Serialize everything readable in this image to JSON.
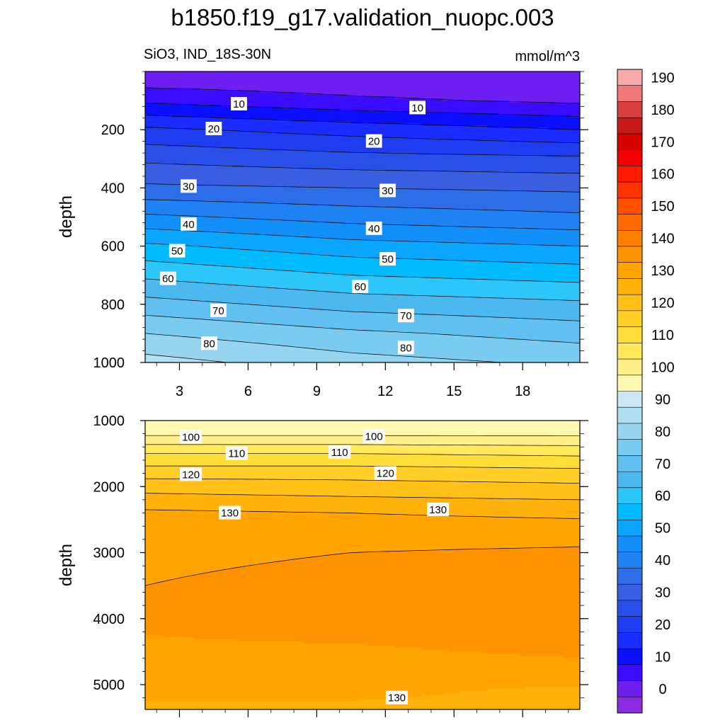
{
  "title": "b1850.f19_g17.validation_nuopc.003",
  "chart_data": {
    "type": "heatmap",
    "subtitle_left": "SiO3, IND_18S-30N",
    "subtitle_right": "mmol/m^3",
    "x_ticks": [
      3,
      6,
      9,
      12,
      15,
      18
    ],
    "xlim": [
      1.5,
      20.5
    ],
    "top_panel": {
      "ylabel": "depth",
      "ylim": [
        0,
        1000
      ],
      "y_ticks": [
        200,
        400,
        600,
        800,
        1000
      ],
      "x": [
        1.5,
        10.5,
        20.5
      ],
      "depths": [
        0,
        100,
        200,
        300,
        400,
        500,
        600,
        700,
        800,
        900,
        1000
      ],
      "values": [
        [
          0,
          0,
          0
        ],
        [
          9,
          6,
          4
        ],
        [
          21,
          18,
          15
        ],
        [
          29,
          27,
          26
        ],
        [
          36,
          35,
          34
        ],
        [
          46,
          43,
          41
        ],
        [
          56,
          52,
          50
        ],
        [
          64,
          60,
          58
        ],
        [
          72,
          68,
          66
        ],
        [
          80,
          76,
          73
        ],
        [
          87,
          82,
          79
        ]
      ],
      "contour_labels": [
        {
          "x": 5.6,
          "depth": 112,
          "text": "10"
        },
        {
          "x": 13.4,
          "depth": 125,
          "text": "10"
        },
        {
          "x": 4.5,
          "depth": 197,
          "text": "20"
        },
        {
          "x": 11.5,
          "depth": 240,
          "text": "20"
        },
        {
          "x": 3.4,
          "depth": 395,
          "text": "30"
        },
        {
          "x": 12.1,
          "depth": 410,
          "text": "30"
        },
        {
          "x": 3.4,
          "depth": 525,
          "text": "40"
        },
        {
          "x": 11.5,
          "depth": 540,
          "text": "40"
        },
        {
          "x": 2.9,
          "depth": 617,
          "text": "50"
        },
        {
          "x": 12.1,
          "depth": 645,
          "text": "50"
        },
        {
          "x": 2.5,
          "depth": 712,
          "text": "60"
        },
        {
          "x": 10.9,
          "depth": 740,
          "text": "60"
        },
        {
          "x": 4.7,
          "depth": 822,
          "text": "70"
        },
        {
          "x": 12.9,
          "depth": 840,
          "text": "70"
        },
        {
          "x": 4.3,
          "depth": 935,
          "text": "80"
        },
        {
          "x": 12.9,
          "depth": 950,
          "text": "80"
        }
      ]
    },
    "bottom_panel": {
      "ylabel": "depth",
      "ylim": [
        1000,
        5375
      ],
      "y_ticks": [
        1000,
        2000,
        3000,
        4000,
        5000
      ],
      "x": [
        1.5,
        10.5,
        20.5
      ],
      "depths": [
        1000,
        1200,
        1500,
        1800,
        2000,
        2400,
        3000,
        4000,
        4500,
        5100,
        5375
      ],
      "values": [
        [
          95,
          95,
          95
        ],
        [
          99,
          99,
          99
        ],
        [
          110,
          110,
          109
        ],
        [
          118,
          118,
          117
        ],
        [
          123,
          122,
          121
        ],
        [
          131,
          130,
          129
        ],
        [
          134,
          135,
          136
        ],
        [
          136,
          138,
          140
        ],
        [
          134,
          134,
          136
        ],
        [
          131,
          131,
          129
        ],
        [
          129,
          129,
          129
        ]
      ],
      "contour_labels": [
        {
          "x": 3.5,
          "depth": 1250,
          "text": "100"
        },
        {
          "x": 11.5,
          "depth": 1240,
          "text": "100"
        },
        {
          "x": 5.5,
          "depth": 1500,
          "text": "110"
        },
        {
          "x": 10.0,
          "depth": 1480,
          "text": "110"
        },
        {
          "x": 3.5,
          "depth": 1820,
          "text": "120"
        },
        {
          "x": 12.0,
          "depth": 1800,
          "text": "120"
        },
        {
          "x": 5.2,
          "depth": 2400,
          "text": "130"
        },
        {
          "x": 14.3,
          "depth": 2350,
          "text": "130"
        },
        {
          "x": 12.5,
          "depth": 5200,
          "text": "130"
        }
      ]
    },
    "colorbar": {
      "levels": [
        -5,
        0,
        5,
        10,
        15,
        20,
        25,
        30,
        35,
        40,
        45,
        50,
        55,
        60,
        65,
        70,
        75,
        80,
        85,
        90,
        95,
        100,
        105,
        110,
        115,
        120,
        125,
        130,
        135,
        140,
        145,
        150,
        155,
        160,
        165,
        170,
        175,
        180,
        185,
        190,
        195
      ],
      "labels": [
        "0",
        "10",
        "20",
        "30",
        "40",
        "50",
        "60",
        "70",
        "80",
        "90",
        "100",
        "110",
        "120",
        "130",
        "140",
        "150",
        "160",
        "170",
        "180",
        "190"
      ],
      "label_values": [
        0,
        10,
        20,
        30,
        40,
        50,
        60,
        70,
        80,
        90,
        100,
        110,
        120,
        130,
        140,
        150,
        160,
        170,
        180,
        190
      ],
      "colors": [
        "#8b2be2",
        "#6e1ef0",
        "#3a0cff",
        "#0a10ff",
        "#1a2cff",
        "#1e3cf0",
        "#2850e8",
        "#3a5ee0",
        "#2d6ee8",
        "#1f82f2",
        "#138ffa",
        "#0aa6ff",
        "#00bbff",
        "#2cc6f8",
        "#4cb8f0",
        "#62c0f0",
        "#7acbf0",
        "#96d4f0",
        "#b0dff2",
        "#cde8f4",
        "#fff8b0",
        "#fff08a",
        "#ffe85a",
        "#ffde3a",
        "#ffcf28",
        "#ffc018",
        "#ffb20c",
        "#ffa400",
        "#ff9200",
        "#ff8000",
        "#ff6a00",
        "#ff5000",
        "#ff3300",
        "#ff1a00",
        "#f20000",
        "#d80000",
        "#c81818",
        "#d84040",
        "#f07878",
        "#f8aaaa"
      ]
    }
  }
}
